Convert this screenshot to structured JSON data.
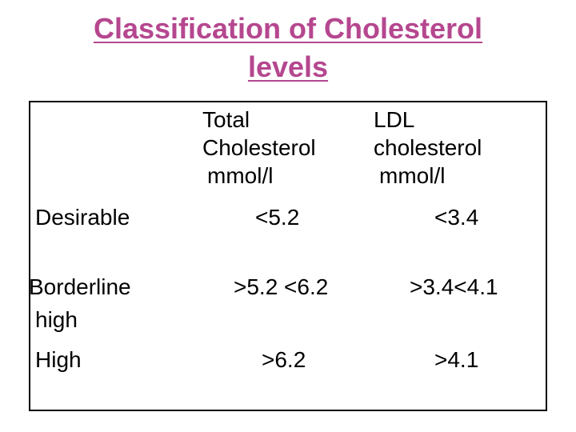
{
  "title": {
    "line1": "Classification of Cholesterol",
    "line2": "levels"
  },
  "table": {
    "headers": {
      "total": [
        "Total",
        "Cholesterol",
        "mmol/l"
      ],
      "ldl": [
        "LDL",
        "cholesterol",
        "mmol/l"
      ]
    },
    "rows": [
      {
        "category": "Desirable",
        "total": "<5.2",
        "ldl": "<3.4"
      },
      {
        "category_lines": [
          "Borderline",
          "high"
        ],
        "total": ">5.2 <6.2",
        "ldl": ">3.4<4.1"
      },
      {
        "category": "High",
        "total": ">6.2",
        "ldl": ">4.1"
      }
    ]
  },
  "colors": {
    "title": "#b5478f",
    "text": "#000000",
    "border": "#000000",
    "background": "#ffffff"
  }
}
